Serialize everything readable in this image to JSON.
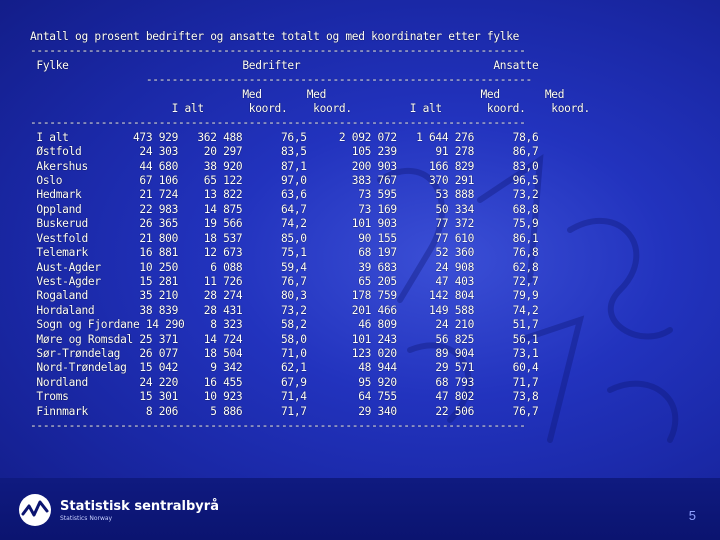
{
  "table": {
    "lines": [
      "Antall og prosent bedrifter og ansatte totalt og med koordinater etter fylke",
      "-----------------------------------------------------------------------------",
      " Fylke                           Bedrifter                              Ansatte",
      "                  ------------------------------------------------------------",
      "                                 Med       Med                        Med       Med",
      "                      I alt       koord.    koord.         I alt       koord.    koord.",
      "-----------------------------------------------------------------------------",
      " I alt          473 929   362 488      76,5     2 092 072   1 644 276      78,6",
      " Østfold         24 303    20 297      83,5       105 239      91 278      86,7",
      " Akershus        44 680    38 920      87,1       200 903     166 829      83,0",
      " Oslo            67 106    65 122      97,0       383 767     370 291      96,5",
      " Hedmark         21 724    13 822      63,6        73 595      53 888      73,2",
      " Oppland         22 983    14 875      64,7        73 169      50 334      68,8",
      " Buskerud        26 365    19 566      74,2       101 903      77 372      75,9",
      " Vestfold        21 800    18 537      85,0        90 155      77 610      86,1",
      " Telemark        16 881    12 673      75,1        68 197      52 360      76,8",
      " Aust-Agder      10 250     6 088      59,4        39 683      24 908      62,8",
      " Vest-Agder      15 281    11 726      76,7        65 205      47 403      72,7",
      " Rogaland        35 210    28 274      80,3       178 759     142 804      79,9",
      " Hordaland       38 839    28 431      73,2       201 466     149 588      74,2",
      " Sogn og Fjordane 14 290    8 323      58,2        46 809      24 210      51,7",
      " Møre og Romsdal 25 371    14 724      58,0       101 243      56 825      56,1",
      " Sør-Trøndelag   26 077    18 504      71,0       123 020      89 904      73,1",
      " Nord-Trøndelag  15 042     9 342      62,1        48 944      29 571      60,4",
      " Nordland        24 220    16 455      67,9        95 920      68 793      71,7",
      " Troms           15 301    10 923      71,4        64 755      47 802      73,8",
      " Finnmark         8 206     5 886      71,7        29 340      22 506      76,7",
      "-----------------------------------------------------------------------------"
    ]
  },
  "footer": {
    "org_name": "Statistisk sentralbyrå",
    "org_sub": "Statistics Norway",
    "page_number": "5"
  }
}
